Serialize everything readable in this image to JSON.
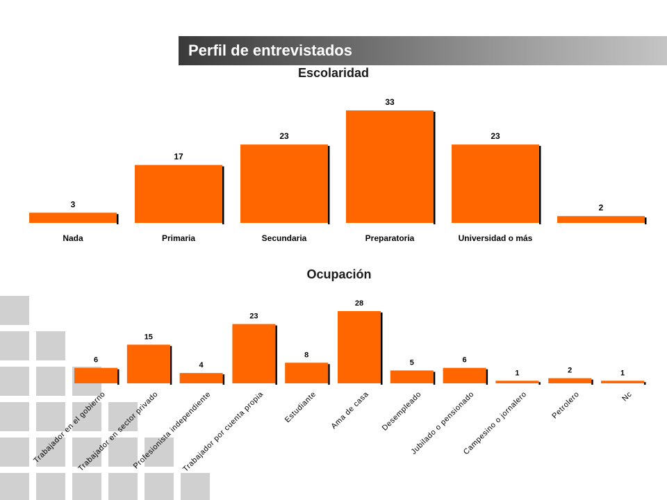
{
  "header": {
    "title": "Perfil de entrevistados"
  },
  "colors": {
    "bar": "#ff6600",
    "banner_start": "#3a3a3a",
    "banner_end": "#c4c4c4"
  },
  "chart_data": [
    {
      "type": "bar",
      "title": "Escolaridad",
      "categories": [
        "Nada",
        "Primaria",
        "Secundaria",
        "Preparatoria",
        "Universidad o más",
        ""
      ],
      "values": [
        3,
        17,
        23,
        33,
        23,
        2
      ],
      "data_labels": [
        "3",
        "17",
        "23",
        "33",
        "23",
        "2"
      ],
      "xlabel": "",
      "ylabel": "",
      "ylim": [
        0,
        33
      ],
      "grid": false
    },
    {
      "type": "bar",
      "title": "Ocupación",
      "categories": [
        "Trabajador en el gobierno",
        "Trabajador en sector privado",
        "Profesionista independiente",
        "Trabajador por cuenta propia",
        "Estudiante",
        "Ama de casa",
        "Desempleado",
        "Jubilado o pensionado",
        "Campesino o jornalero",
        "Petrolero",
        "Nc"
      ],
      "values": [
        6,
        15,
        4,
        23,
        8,
        28,
        5,
        6,
        1,
        2,
        1
      ],
      "data_labels": [
        "6",
        "15",
        "4",
        "23",
        "8",
        "28",
        "5",
        "6",
        "1",
        "2",
        "1"
      ],
      "xlabel": "",
      "ylabel": "",
      "ylim": [
        0,
        28
      ],
      "grid": false
    }
  ]
}
